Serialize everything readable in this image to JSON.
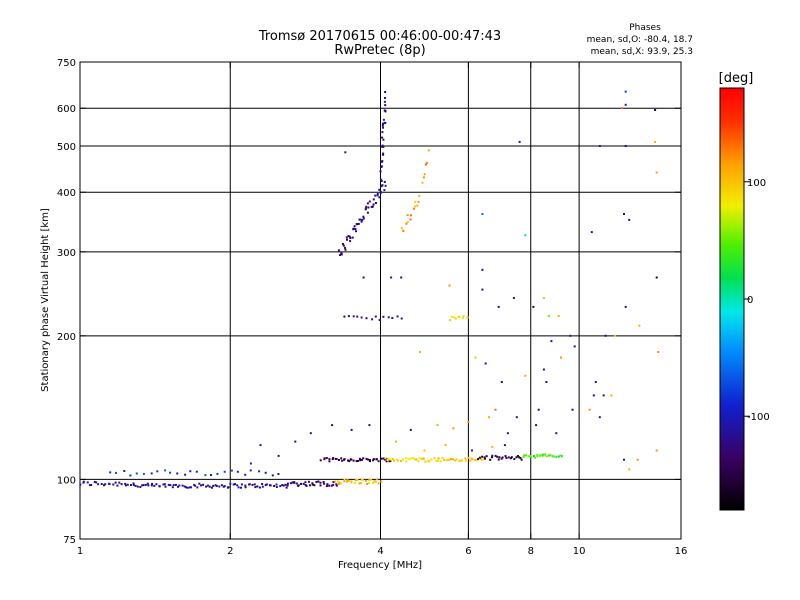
{
  "chart_data": {
    "type": "scatter",
    "title": "Tromsø 20170615 00:46:00-00:47:43",
    "subtitle": "RwPretec (8p)",
    "xlabel": "Frequency [MHz]",
    "ylabel": "Stationary phase Virtual Height [km]",
    "xscale": "log",
    "yscale": "log",
    "xlim": [
      1,
      16
    ],
    "ylim": [
      75,
      750
    ],
    "x_ticks": [
      1,
      2,
      4,
      6,
      8,
      10,
      16
    ],
    "y_ticks": [
      75,
      100,
      200,
      300,
      400,
      500,
      600,
      750
    ],
    "x_gridlines": [
      2,
      4,
      6,
      8,
      10
    ],
    "y_gridlines": [
      100,
      200,
      300,
      400,
      500,
      600
    ],
    "stats": {
      "heading": "Phases",
      "line_o": "mean, sd,O: -80.4, 18.7",
      "line_x": "mean, sd,X:  93.9, 25.3"
    },
    "colorbar": {
      "label": "[deg]",
      "range": [
        -180,
        180
      ],
      "ticks": [
        100,
        0,
        -100
      ]
    },
    "segments": [
      {
        "x0": 1.0,
        "x1": 1.28,
        "y0": 98,
        "y1": 98,
        "n": 24,
        "phase": -110,
        "jitter": 0.012
      },
      {
        "x0": 1.28,
        "x1": 2.6,
        "y0": 97,
        "y1": 97,
        "n": 80,
        "phase": -115,
        "jitter": 0.01
      },
      {
        "x0": 2.6,
        "x1": 3.3,
        "y0": 98,
        "y1": 98,
        "n": 34,
        "phase": -130,
        "jitter": 0.012
      },
      {
        "x0": 1.15,
        "x1": 2.5,
        "y0": 103,
        "y1": 103,
        "n": 26,
        "phase": -85,
        "jitter": 0.015
      },
      {
        "x0": 3.25,
        "x1": 4.0,
        "y0": 99,
        "y1": 99,
        "n": 30,
        "phase": 105,
        "jitter": 0.012
      },
      {
        "x0": 3.05,
        "x1": 4.2,
        "y0": 110,
        "y1": 110,
        "n": 42,
        "phase": -150,
        "jitter": 0.008
      },
      {
        "x0": 4.1,
        "x1": 6.4,
        "y0": 110,
        "y1": 110,
        "n": 55,
        "phase": 95,
        "jitter": 0.01
      },
      {
        "x0": 6.3,
        "x1": 7.7,
        "y0": 111,
        "y1": 111,
        "n": 26,
        "phase": -145,
        "jitter": 0.01
      },
      {
        "x0": 7.7,
        "x1": 9.2,
        "y0": 112,
        "y1": 112,
        "n": 26,
        "phase": 40,
        "jitter": 0.008
      },
      {
        "x0": 3.3,
        "x1": 4.1,
        "y0": 295,
        "y1": 420,
        "n": 55,
        "phase": -120,
        "jitter": 0.03
      },
      {
        "x0": 4.0,
        "x1": 4.1,
        "y0": 420,
        "y1": 640,
        "n": 30,
        "phase": -115,
        "jitter": 0.02
      },
      {
        "x0": 4.4,
        "x1": 4.8,
        "y0": 330,
        "y1": 390,
        "n": 14,
        "phase": 110,
        "jitter": 0.02
      },
      {
        "x0": 4.85,
        "x1": 5.0,
        "y0": 420,
        "y1": 480,
        "n": 6,
        "phase": 120,
        "jitter": 0.02
      },
      {
        "x0": 3.4,
        "x1": 4.4,
        "y0": 218,
        "y1": 218,
        "n": 14,
        "phase": -110,
        "jitter": 0.01
      },
      {
        "x0": 5.5,
        "x1": 6.0,
        "y0": 218,
        "y1": 218,
        "n": 10,
        "phase": 80,
        "jitter": 0.01
      }
    ],
    "scatter": [
      [
        6.4,
        360,
        -60
      ],
      [
        6.4,
        250,
        -120
      ],
      [
        6.4,
        275,
        -110
      ],
      [
        6.9,
        230,
        -120
      ],
      [
        7.4,
        240,
        -120
      ],
      [
        8.1,
        230,
        -140
      ],
      [
        8.5,
        240,
        60
      ],
      [
        8.7,
        220,
        50
      ],
      [
        9.1,
        220,
        110
      ],
      [
        8.8,
        195,
        -110
      ],
      [
        9.6,
        200,
        -110
      ],
      [
        10.6,
        330,
        -120
      ],
      [
        11.3,
        200,
        -120
      ],
      [
        11.8,
        200,
        60
      ],
      [
        12.3,
        360,
        -120
      ],
      [
        12.4,
        230,
        -130
      ],
      [
        12.6,
        350,
        -120
      ],
      [
        13.2,
        210,
        110
      ],
      [
        14.2,
        595,
        -150
      ],
      [
        14.2,
        510,
        110
      ],
      [
        14.3,
        440,
        115
      ],
      [
        14.3,
        265,
        -150
      ],
      [
        12.4,
        650,
        -80
      ],
      [
        12.4,
        610,
        -100
      ],
      [
        12.4,
        500,
        -120
      ],
      [
        12.2,
        600,
        130
      ],
      [
        11.0,
        500,
        -100
      ],
      [
        7.8,
        325,
        10
      ],
      [
        7.6,
        510,
        -110
      ],
      [
        5.5,
        255,
        120
      ],
      [
        4.4,
        265,
        -120
      ],
      [
        4.2,
        265,
        -110
      ],
      [
        3.4,
        485,
        -110
      ],
      [
        3.7,
        265,
        -120
      ],
      [
        4.8,
        185,
        110
      ],
      [
        6.2,
        180,
        60
      ],
      [
        6.5,
        175,
        -110
      ],
      [
        7.0,
        160,
        -120
      ],
      [
        7.8,
        165,
        110
      ],
      [
        8.5,
        170,
        -120
      ],
      [
        9.8,
        190,
        -120
      ],
      [
        10.8,
        160,
        -110
      ],
      [
        11.2,
        150,
        -120
      ],
      [
        11.6,
        150,
        110
      ],
      [
        12.3,
        110,
        -120
      ],
      [
        12.6,
        105,
        110
      ],
      [
        14.3,
        115,
        120
      ],
      [
        14.4,
        185,
        120
      ],
      [
        8.6,
        160,
        -110
      ],
      [
        9.2,
        180,
        120
      ],
      [
        9.7,
        140,
        -120
      ],
      [
        11.0,
        135,
        -110
      ],
      [
        5.2,
        130,
        110
      ],
      [
        5.6,
        128,
        120
      ],
      [
        6.0,
        132,
        120
      ],
      [
        6.6,
        135,
        110
      ],
      [
        6.8,
        140,
        130
      ],
      [
        7.2,
        125,
        -120
      ],
      [
        7.5,
        135,
        -110
      ],
      [
        8.2,
        130,
        -120
      ],
      [
        9.0,
        125,
        -110
      ],
      [
        8.3,
        140,
        -120
      ],
      [
        4.6,
        127,
        -120
      ],
      [
        4.3,
        120,
        110
      ],
      [
        3.5,
        127,
        -120
      ],
      [
        3.8,
        130,
        -110
      ],
      [
        3.2,
        130,
        -130
      ],
      [
        2.7,
        120,
        -120
      ],
      [
        2.3,
        118,
        -110
      ],
      [
        2.9,
        125,
        -120
      ],
      [
        2.5,
        112,
        -120
      ],
      [
        2.2,
        108,
        -100
      ],
      [
        4.9,
        115,
        100
      ],
      [
        5.4,
        118,
        110
      ],
      [
        6.1,
        115,
        -120
      ],
      [
        6.7,
        117,
        110
      ],
      [
        7.1,
        118,
        -120
      ],
      [
        10.5,
        140,
        120
      ],
      [
        10.7,
        150,
        -110
      ],
      [
        13.1,
        110,
        120
      ]
    ]
  }
}
